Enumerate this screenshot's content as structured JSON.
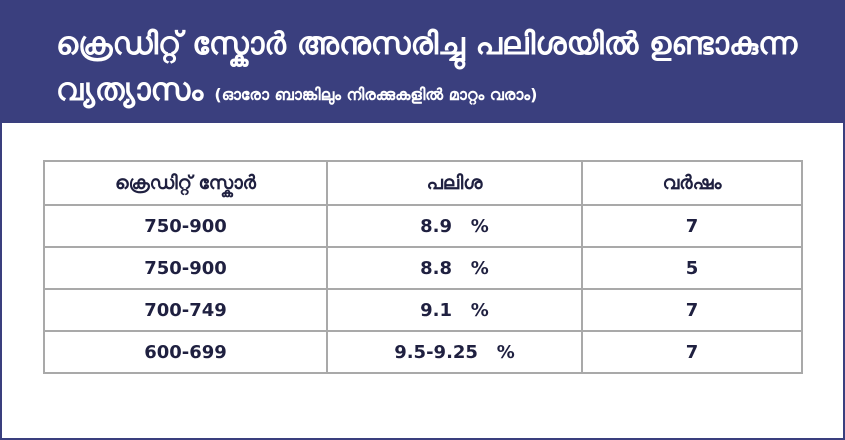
{
  "header": {
    "title_line1": "ക്രെഡിറ്റ് സ്കോർ അനുസരിച്ചു പലിശയിൽ ഉണ്ടാകുന്ന",
    "title_line2": "വ്യത്യാസം",
    "subtitle": "(ഓരോ ബാങ്കിലും നിരക്കുകളിൽ മാറ്റം വരാം)"
  },
  "table": {
    "columns": [
      "ക്രെഡിറ്റ് സ്കോർ",
      "പലിശ",
      "വർഷം"
    ],
    "rows": [
      {
        "score": "750-900",
        "rate": "8.9   %",
        "years": "7"
      },
      {
        "score": "750-900",
        "rate": "8.8   %",
        "years": "5"
      },
      {
        "score": "700-749",
        "rate": "9.1   %",
        "years": "7"
      },
      {
        "score": "600-699",
        "rate": "9.5-9.25   %",
        "years": "7"
      }
    ]
  },
  "colors": {
    "header_bg": "#3a3f7e",
    "header_text": "#ffffff",
    "table_border": "#a9a9a9",
    "cell_text": "#1f2040"
  }
}
